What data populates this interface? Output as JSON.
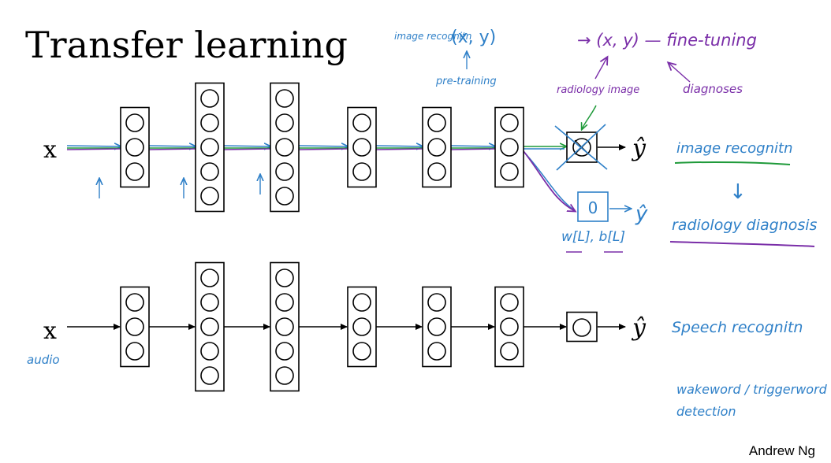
{
  "slide": {
    "title": "Transfer learning",
    "credit": "Andrew Ng"
  },
  "network_top": {
    "input_label": "x",
    "output_label": "ŷ",
    "head_output_label": "ŷ",
    "head_neuron_text": "0",
    "layer_sizes": [
      3,
      5,
      5,
      3,
      3,
      3
    ]
  },
  "network_bottom": {
    "input_label": "x",
    "input_note": "audio",
    "output_label": "ŷ",
    "layer_sizes": [
      3,
      5,
      5,
      3,
      3,
      3,
      1
    ]
  },
  "annotations": {
    "image_recognition_short": "image recognitn",
    "xy_pretrain": "(x, y)",
    "pre_training": "pre-training",
    "xy_finetune": "→ (x, y) — fine-tuning",
    "radiology_image": "radiology image",
    "diagnoses": "diagnoses",
    "new_params": "w[L], b[L]",
    "image_recognition": "image recognitn",
    "down_arrow": "↓",
    "radiology_diagnosis": "radiology diagnosis",
    "speech_recognition": "Speech recognitn",
    "wakeword": "wakeword / triggerword",
    "detection": "detection"
  },
  "colors": {
    "ink": "#000000",
    "blue_ink": "#2f80c8",
    "purple_ink": "#7a2ea8",
    "green_ink": "#1f9a3a"
  }
}
